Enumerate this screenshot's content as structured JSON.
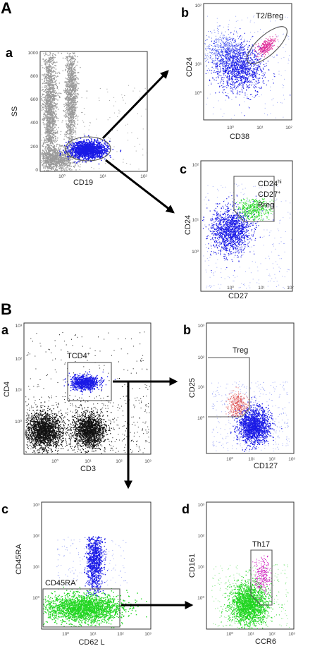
{
  "sections": {
    "a": "A",
    "b": "B"
  },
  "panels": {
    "A_a": {
      "letter": "a",
      "xlabel": "CD19",
      "ylabel": "SS",
      "yticks": [
        "1000",
        "800",
        "600",
        "400",
        "200",
        "0"
      ],
      "xticks": [
        "10⁰",
        "10¹",
        "10²"
      ]
    },
    "A_b": {
      "letter": "b",
      "xlabel": "CD38",
      "ylabel": "CD24",
      "xticks": [
        "10⁰",
        "10¹",
        "10²"
      ],
      "yticks": [
        "10²",
        "10¹",
        "10⁰"
      ],
      "gate_label": "T2/Breg"
    },
    "A_c": {
      "letter": "c",
      "xlabel": "CD27",
      "ylabel": "CD24",
      "xticks": [
        "10⁰",
        "10¹",
        "10²"
      ],
      "yticks": [
        "10²",
        "10¹",
        "10⁰"
      ],
      "gate_line1_main": "CD24",
      "gate_line1_sup": "hi",
      "gate_line2_main": "CD27",
      "gate_line2_sup": "+",
      "gate_line3": "Breg"
    },
    "B_a": {
      "letter": "a",
      "xlabel": "CD3",
      "ylabel": "CD4",
      "xticks": [
        "10⁰",
        "10¹",
        "10²",
        "10³"
      ],
      "yticks": [
        "10³",
        "10²",
        "10¹",
        "10⁰"
      ],
      "gate_label_main": "TCD4",
      "gate_label_sup": "+"
    },
    "B_b": {
      "letter": "b",
      "xlabel": "CD127",
      "ylabel": "CD25",
      "xticks": [
        "10⁰",
        "10¹",
        "10²",
        "10³"
      ],
      "yticks": [
        "10³",
        "10²",
        "10¹",
        "10⁰"
      ],
      "gate_label": "Treg"
    },
    "B_c": {
      "letter": "c",
      "xlabel": "CD62 L",
      "ylabel": "CD45RA",
      "xticks": [
        "10⁰",
        "10¹",
        "10²",
        "10³"
      ],
      "yticks": [
        "10³",
        "10²",
        "10¹",
        "10⁰"
      ],
      "gate_label_main": "CD45RA",
      "gate_label_sup": "-"
    },
    "B_d": {
      "letter": "d",
      "xlabel": "CCR6",
      "ylabel": "CD161",
      "xticks": [
        "10⁰",
        "10¹",
        "10²",
        "10³"
      ],
      "yticks": [
        "10³",
        "10²",
        "10¹",
        "10⁰"
      ],
      "gate_label": "Th17"
    }
  },
  "colors": {
    "gray_events": "#9a9a9a",
    "blue_events": "#1a1ae6",
    "light_blue_events": "#5a6cf0",
    "pink_events": "#e0309a",
    "green_events": "#22d622",
    "black_events": "#111111",
    "red_events": "#e05050",
    "magenta_events": "#d020c0"
  }
}
